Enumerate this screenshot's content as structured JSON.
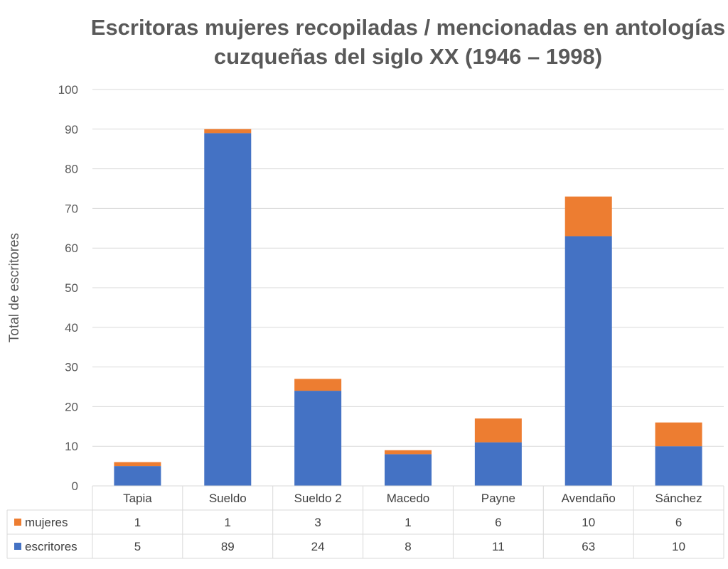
{
  "chart_data": {
    "type": "bar",
    "stacked": true,
    "title": "Escritoras mujeres recopiladas / mencionadas en antologías cuzqueñas del siglo XX (1946 – 1998)",
    "title_lines": [
      "Escritoras mujeres recopiladas / mencionadas en antologías",
      "cuzqueñas del siglo XX (1946 – 1998)"
    ],
    "ylabel": "Total de escritores",
    "xlabel": "",
    "ylim": [
      0,
      100
    ],
    "yticks": [
      0,
      10,
      20,
      30,
      40,
      50,
      60,
      70,
      80,
      90,
      100
    ],
    "grid": true,
    "legend": "data-table",
    "categories": [
      "Tapia",
      "Sueldo",
      "Sueldo 2",
      "Macedo",
      "Payne",
      "Avendaño",
      "Sánchez"
    ],
    "series": [
      {
        "name": "escritores",
        "color": "#4472c4",
        "values": [
          5,
          89,
          24,
          8,
          11,
          63,
          10
        ]
      },
      {
        "name": "mujeres",
        "color": "#ed7d31",
        "values": [
          1,
          1,
          3,
          1,
          6,
          10,
          6
        ]
      }
    ],
    "table_rows": [
      "mujeres",
      "escritores"
    ]
  }
}
